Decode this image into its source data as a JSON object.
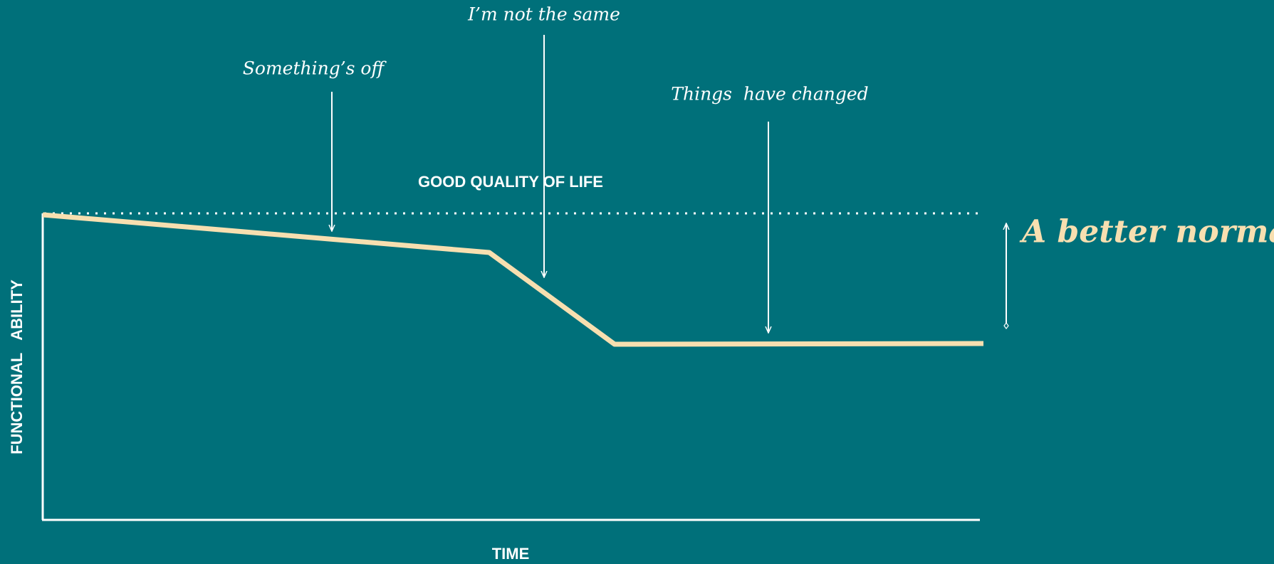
{
  "annotations": {
    "not_same": "I’m not the same",
    "off": "Something’s off",
    "changed": "Things  have changed"
  },
  "reference_label": "GOOD QUALITY OF LIFE",
  "result_label": "A better normal",
  "y_axis_label": "FUNCTIONAL   ABILITY",
  "x_axis_label": "TIME"
}
